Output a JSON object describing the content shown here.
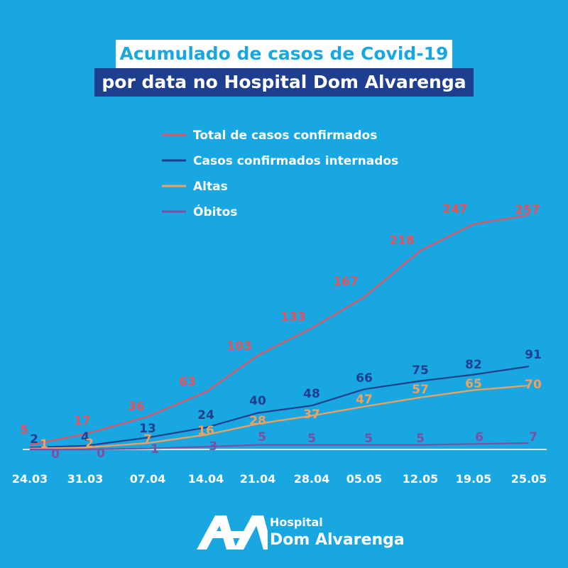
{
  "title": {
    "line1": "Acumulado de casos de Covid-19",
    "line2": "por data no Hospital Dom Alvarenga"
  },
  "logo": {
    "word1": "Hospital",
    "word2": "Dom Alvarenga"
  },
  "chart_data": {
    "type": "line",
    "categories": [
      "24.03",
      "31.03",
      "07.04",
      "14.04",
      "21.04",
      "28.04",
      "05.05",
      "12.05",
      "19.05",
      "25.05"
    ],
    "ylim": [
      0,
      260
    ],
    "grid": false,
    "legend_position": "top",
    "series": [
      {
        "name": "Total de casos confirmados",
        "color": "#e8505b",
        "values": [
          5,
          17,
          36,
          63,
          103,
          133,
          167,
          218,
          247,
          257
        ]
      },
      {
        "name": "Casos confirmados internados",
        "color": "#1e3f8f",
        "values": [
          2,
          4,
          13,
          24,
          40,
          48,
          66,
          75,
          82,
          91
        ]
      },
      {
        "name": "Altas",
        "color": "#f5a05a",
        "values": [
          1,
          2,
          7,
          16,
          28,
          37,
          47,
          57,
          65,
          70
        ]
      },
      {
        "name": "Óbitos",
        "color": "#7e4ea3",
        "values": [
          0,
          0,
          1,
          3,
          5,
          5,
          5,
          5,
          6,
          7
        ]
      }
    ]
  }
}
